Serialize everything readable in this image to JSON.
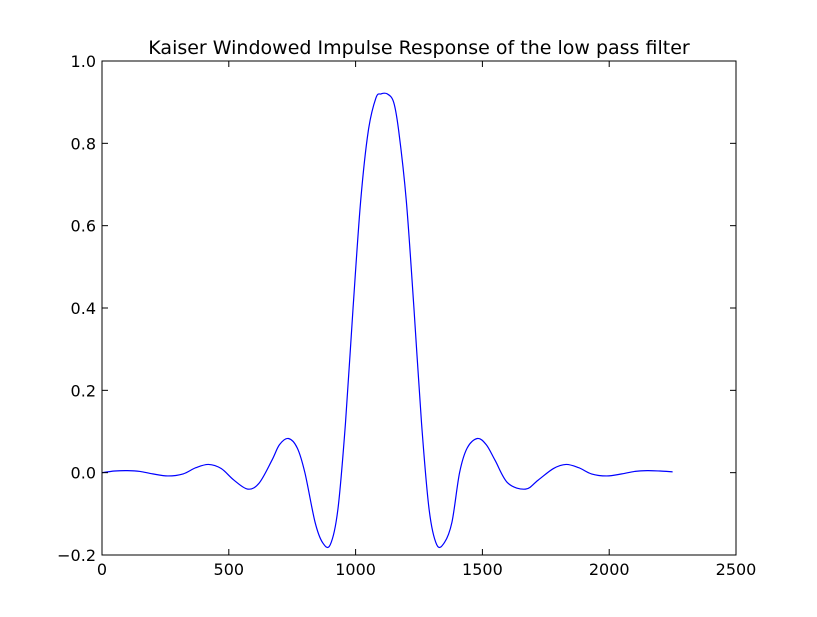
{
  "chart_data": {
    "type": "line",
    "title": "Kaiser Windowed Impulse Response of the low pass filter",
    "xlabel": "",
    "ylabel": "",
    "xlim": [
      0,
      2500
    ],
    "ylim": [
      -0.2,
      1.0
    ],
    "xticks": [
      0,
      500,
      1000,
      1500,
      2000,
      2500
    ],
    "xtick_labels": [
      "0",
      "500",
      "1000",
      "1500",
      "2000",
      "2500"
    ],
    "yticks": [
      -0.2,
      0.0,
      0.2,
      0.4,
      0.6,
      0.8,
      1.0
    ],
    "ytick_labels": [
      "−0.2",
      "0.0",
      "0.2",
      "0.4",
      "0.6",
      "0.8",
      "1.0"
    ],
    "grid": false,
    "legend": "none",
    "series": [
      {
        "color": "#0000ff",
        "x": [
          0,
          50,
          100,
          150,
          200,
          260,
          320,
          370,
          420,
          470,
          520,
          575,
          620,
          670,
          700,
          735,
          770,
          800,
          840,
          870,
          900,
          930,
          960,
          990,
          1020,
          1050,
          1080,
          1100,
          1125,
          1150,
          1170,
          1200,
          1230,
          1260,
          1290,
          1320,
          1350,
          1380,
          1410,
          1440,
          1480,
          1515,
          1550,
          1600,
          1670,
          1720,
          1780,
          1830,
          1880,
          1930,
          1990,
          2050,
          2100,
          2150,
          2200,
          2250
        ],
        "y": [
          0.0,
          0.004,
          0.005,
          0.003,
          -0.003,
          -0.008,
          -0.003,
          0.012,
          0.02,
          0.01,
          -0.018,
          -0.04,
          -0.025,
          0.03,
          0.068,
          0.083,
          0.06,
          0.0,
          -0.12,
          -0.17,
          -0.175,
          -0.09,
          0.12,
          0.4,
          0.66,
          0.83,
          0.91,
          0.92,
          0.92,
          0.9,
          0.83,
          0.66,
          0.4,
          0.12,
          -0.09,
          -0.175,
          -0.17,
          -0.12,
          0.0,
          0.06,
          0.083,
          0.068,
          0.03,
          -0.025,
          -0.04,
          -0.018,
          0.01,
          0.02,
          0.012,
          -0.003,
          -0.008,
          -0.003,
          0.003,
          0.005,
          0.004,
          0.002
        ]
      }
    ]
  }
}
